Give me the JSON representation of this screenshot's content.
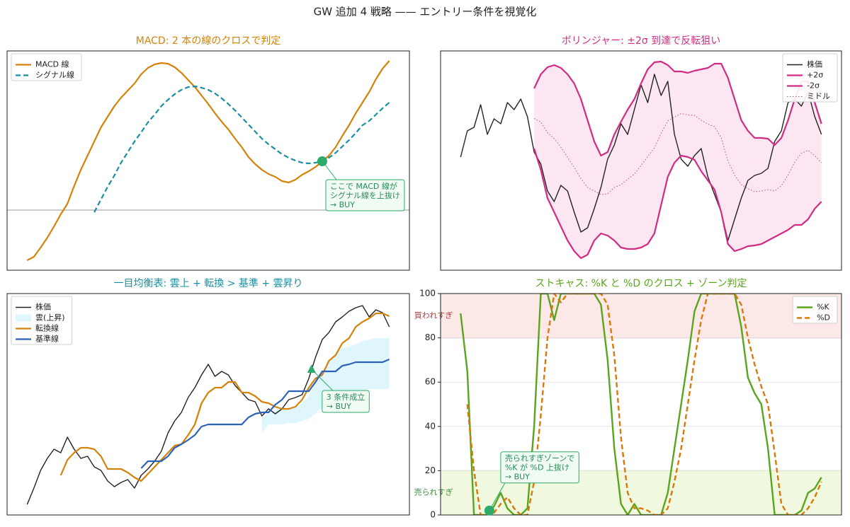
{
  "title": "GW 追加 4 戦略 —— エントリー条件を視覚化",
  "chart_data": [
    {
      "type": "line",
      "title": "MACD: 2 本の線のクロスで判定",
      "title_color": "#d4820a",
      "xlim": [
        -3,
        57
      ],
      "ylim": [
        -0.85,
        2.25
      ],
      "hline": 0,
      "legend": "upper left",
      "x": [
        0,
        1,
        2,
        3,
        4,
        5,
        6,
        7,
        8,
        9,
        10,
        11,
        12,
        13,
        14,
        15,
        16,
        17,
        18,
        19,
        20,
        21,
        22,
        23,
        24,
        25,
        26,
        27,
        28,
        29,
        30,
        31,
        32,
        33,
        34,
        35,
        36,
        37,
        38,
        39,
        40,
        41,
        42,
        43,
        44,
        45,
        46,
        47,
        48,
        49,
        50,
        51,
        52,
        53,
        54
      ],
      "series": [
        {
          "name": "MACD 線",
          "color": "#d4820a",
          "style": "solid",
          "values": [
            -0.71,
            -0.66,
            -0.53,
            -0.39,
            -0.23,
            -0.06,
            0.09,
            0.34,
            0.57,
            0.77,
            0.97,
            1.17,
            1.32,
            1.47,
            1.59,
            1.69,
            1.79,
            1.92,
            2.01,
            2.06,
            2.08,
            2.07,
            2.02,
            1.94,
            1.84,
            1.74,
            1.62,
            1.5,
            1.37,
            1.25,
            1.14,
            1.01,
            0.89,
            0.75,
            0.65,
            0.57,
            0.51,
            0.47,
            0.41,
            0.39,
            0.43,
            0.5,
            0.55,
            0.61,
            0.69,
            0.77,
            0.89,
            1.05,
            1.2,
            1.37,
            1.52,
            1.67,
            1.85,
            2.0,
            2.11
          ]
        },
        {
          "name": "シグナル線",
          "color": "#1a8fa3",
          "style": "dashed",
          "values": [
            null,
            null,
            null,
            null,
            null,
            null,
            null,
            null,
            null,
            null,
            -0.03,
            0.15,
            0.33,
            0.49,
            0.67,
            0.82,
            0.97,
            1.1,
            1.24,
            1.35,
            1.47,
            1.56,
            1.64,
            1.7,
            1.74,
            1.75,
            1.73,
            1.7,
            1.65,
            1.58,
            1.5,
            1.41,
            1.31,
            1.21,
            1.11,
            1.01,
            0.93,
            0.86,
            0.79,
            0.74,
            0.7,
            0.67,
            0.66,
            0.67,
            0.69,
            0.74,
            0.81,
            0.9,
            0.99,
            1.09,
            1.2,
            1.26,
            1.35,
            1.44,
            1.52
          ]
        }
      ],
      "annotations": [
        {
          "x": 44,
          "y": 0.69,
          "marker": "circle",
          "color": "#2eaa6a",
          "lines": [
            "ここで MACD 線が",
            "シグナル線を上抜け",
            "→ BUY"
          ]
        }
      ]
    },
    {
      "type": "line",
      "title": "ボリンジャー: ±2σ 到達で反転狙い",
      "title_color": "#d12c84",
      "xlim": [
        -3,
        57
      ],
      "ylim": [
        18,
        328
      ],
      "legend": "upper right",
      "fill_between": [
        1,
        2
      ],
      "fill_color": "#fce6f1",
      "x": [
        0,
        1,
        2,
        3,
        4,
        5,
        6,
        7,
        8,
        9,
        10,
        11,
        12,
        13,
        14,
        15,
        16,
        17,
        18,
        19,
        20,
        21,
        22,
        23,
        24,
        25,
        26,
        27,
        28,
        29,
        30,
        31,
        32,
        33,
        34,
        35,
        36,
        37,
        38,
        39,
        40,
        41,
        42,
        43,
        44,
        45,
        46,
        47,
        48,
        49,
        50,
        51,
        52,
        53,
        54
      ],
      "series": [
        {
          "name": "株価",
          "color": "#222222",
          "style": "solid",
          "width": 1.4,
          "values": [
            178,
            215,
            220,
            252,
            210,
            232,
            225,
            255,
            245,
            260,
            235,
            185,
            168,
            130,
            115,
            138,
            130,
            100,
            72,
            78,
            105,
            135,
            175,
            195,
            225,
            210,
            245,
            280,
            255,
            295,
            265,
            285,
            210,
            175,
            165,
            180,
            190,
            150,
            125,
            100,
            60,
            90,
            120,
            145,
            152,
            155,
            162,
            200,
            215,
            255,
            260,
            250,
            270,
            235,
            210
          ]
        },
        {
          "name": "+2σ",
          "color": "#d12c84",
          "style": "solid",
          "values": [
            null,
            null,
            null,
            null,
            null,
            null,
            null,
            null,
            null,
            null,
            null,
            275,
            295,
            305,
            308,
            304,
            295,
            282,
            260,
            230,
            200,
            180,
            185,
            210,
            228,
            245,
            260,
            282,
            302,
            312,
            313,
            308,
            299,
            299,
            297,
            300,
            302,
            304,
            310,
            310,
            290,
            260,
            230,
            215,
            205,
            205,
            204,
            195,
            205,
            230,
            260,
            285,
            285,
            255,
            225
          ]
        },
        {
          "name": "-2σ",
          "color": "#d12c84",
          "style": "solid",
          "values": [
            null,
            null,
            null,
            null,
            null,
            null,
            null,
            null,
            null,
            null,
            null,
            190,
            160,
            120,
            100,
            80,
            60,
            45,
            35,
            40,
            60,
            70,
            67,
            60,
            50,
            48,
            48,
            50,
            55,
            70,
            110,
            150,
            170,
            180,
            178,
            174,
            158,
            145,
            132,
            100,
            55,
            45,
            48,
            52,
            53,
            55,
            60,
            65,
            70,
            75,
            82,
            82,
            90,
            105,
            115
          ]
        },
        {
          "name": "ミドル",
          "color": "#c0507a",
          "style": "dotted",
          "width": 1,
          "values": [
            null,
            null,
            null,
            null,
            null,
            null,
            null,
            null,
            null,
            null,
            null,
            232.5,
            227.5,
            212.5,
            204,
            192,
            177.5,
            163.5,
            147.5,
            135,
            130,
            125,
            126,
            135,
            139,
            146.5,
            154,
            166,
            178.5,
            191,
            211.5,
            229,
            234.5,
            239.5,
            237.5,
            237,
            230,
            224.5,
            221,
            205,
            172.5,
            152.5,
            139,
            133.5,
            129,
            130,
            132,
            130,
            137.5,
            152.5,
            171,
            183.5,
            187.5,
            180,
            170
          ]
        }
      ]
    },
    {
      "type": "line",
      "title": "一目均衡表: 雲上 + 転換 > 基準 + 雲昇り",
      "title_color": "#1a8fa3",
      "xlim": [
        -3,
        57
      ],
      "ylim": [
        72,
        385
      ],
      "legend": "upper left",
      "x": [
        0,
        1,
        2,
        3,
        4,
        5,
        6,
        7,
        8,
        9,
        10,
        11,
        12,
        13,
        14,
        15,
        16,
        17,
        18,
        19,
        20,
        21,
        22,
        23,
        24,
        25,
        26,
        27,
        28,
        29,
        30,
        31,
        32,
        33,
        34,
        35,
        36,
        37,
        38,
        39,
        40,
        41,
        42,
        43,
        44,
        45,
        46,
        47,
        48,
        49,
        50,
        51,
        52,
        53,
        54
      ],
      "series": [
        {
          "name": "株価",
          "color": "#222222",
          "style": "solid",
          "width": 1.4,
          "values": [
            87,
            110,
            135,
            152,
            165,
            160,
            182,
            165,
            152,
            155,
            140,
            135,
            120,
            112,
            118,
            122,
            110,
            128,
            137,
            148,
            162,
            188,
            205,
            217,
            238,
            252,
            270,
            285,
            268,
            275,
            270,
            255,
            245,
            235,
            232,
            212,
            222,
            215,
            222,
            235,
            238,
            242,
            265,
            295,
            320,
            330,
            345,
            352,
            360,
            365,
            368,
            352,
            362,
            358,
            338
          ]
        },
        {
          "name": "雲(上昇)",
          "type": "band",
          "color": "#dff7fc",
          "upper": [
            null,
            null,
            null,
            null,
            null,
            null,
            null,
            null,
            null,
            null,
            null,
            null,
            null,
            null,
            null,
            null,
            null,
            null,
            null,
            null,
            null,
            null,
            null,
            null,
            null,
            null,
            null,
            null,
            null,
            null,
            null,
            null,
            null,
            null,
            null,
            210,
            215,
            220,
            225,
            222,
            225,
            230,
            240,
            260,
            272,
            288,
            300,
            308,
            310,
            313,
            318,
            320,
            322,
            322,
            322
          ],
          "lower": [
            null,
            null,
            null,
            null,
            null,
            null,
            null,
            null,
            null,
            null,
            null,
            null,
            null,
            null,
            null,
            null,
            null,
            null,
            null,
            null,
            null,
            null,
            null,
            null,
            null,
            null,
            null,
            null,
            null,
            null,
            null,
            null,
            null,
            null,
            null,
            188,
            200,
            200,
            200,
            202,
            202,
            205,
            208,
            215,
            225,
            235,
            240,
            240,
            240,
            245,
            247,
            250,
            250,
            250,
            250
          ]
        },
        {
          "name": "転換線",
          "color": "#d4820a",
          "style": "solid",
          "values": [
            null,
            null,
            null,
            null,
            null,
            128,
            150,
            160,
            167,
            167,
            165,
            155,
            137,
            137,
            137,
            132,
            125,
            120,
            130,
            140,
            150,
            160,
            170,
            172,
            185,
            200,
            230,
            245,
            252,
            252,
            260,
            260,
            245,
            245,
            240,
            232,
            230,
            225,
            222,
            222,
            225,
            235,
            252,
            265,
            270,
            290,
            298,
            315,
            322,
            338,
            345,
            350,
            357,
            357,
            353
          ]
        },
        {
          "name": "基準線",
          "color": "#2c62b8",
          "style": "solid",
          "values": [
            null,
            null,
            null,
            null,
            null,
            null,
            null,
            null,
            null,
            null,
            null,
            null,
            null,
            null,
            null,
            null,
            null,
            138,
            148,
            148,
            148,
            155,
            167,
            172,
            178,
            185,
            197,
            200,
            200,
            200,
            200,
            200,
            200,
            210,
            215,
            217,
            217,
            228,
            235,
            247,
            247,
            247,
            247,
            260,
            275,
            275,
            275,
            283,
            285,
            288,
            288,
            288,
            288,
            288,
            292
          ]
        }
      ],
      "annotations": [
        {
          "x": 42.4,
          "y": 278,
          "marker": "triangle",
          "color": "#2eaa6a",
          "lines": [
            "3 条件成立",
            "→ BUY"
          ]
        }
      ]
    },
    {
      "type": "line",
      "title": "ストキャス: %K と %D のクロス + ゾーン判定",
      "title_color": "#5aa51c",
      "xlim": [
        -3,
        57
      ],
      "ylim": [
        0,
        100
      ],
      "yticks": [
        0,
        20,
        40,
        60,
        80,
        100
      ],
      "grid": true,
      "legend": "upper right",
      "zones": [
        {
          "from": 80,
          "to": 100,
          "label": "買われすぎ",
          "color": "#fde8e8",
          "line_color": "#e08a8a",
          "label_color": "#b03a3a"
        },
        {
          "from": 0,
          "to": 20,
          "label": "売られすぎ",
          "color": "#f0f9e0",
          "line_color": "#a8d27a",
          "label_color": "#3f8f3f"
        }
      ],
      "x": [
        0,
        1,
        2,
        3,
        4,
        5,
        6,
        7,
        8,
        9,
        10,
        11,
        12,
        13,
        14,
        15,
        16,
        17,
        18,
        19,
        20,
        21,
        22,
        23,
        24,
        25,
        26,
        27,
        28,
        29,
        30,
        31,
        32,
        33,
        34,
        35,
        36,
        37,
        38,
        39,
        40,
        41,
        42,
        43,
        44,
        45,
        46,
        47,
        48,
        49,
        50,
        51,
        52,
        53,
        54
      ],
      "series": [
        {
          "name": "%K",
          "color": "#5aa51c",
          "style": "solid",
          "width": 2.4,
          "values": [
            91,
            65,
            0,
            0,
            0,
            4,
            10,
            3,
            0,
            0,
            3,
            40,
            100,
            100,
            88,
            100,
            100,
            100,
            100,
            100,
            100,
            95,
            70,
            30,
            5,
            0,
            5,
            0,
            0,
            0,
            0,
            10,
            30,
            50,
            70,
            92,
            100,
            100,
            100,
            100,
            100,
            100,
            85,
            62,
            55,
            50,
            30,
            0,
            0,
            0,
            0,
            2,
            10,
            12,
            17
          ]
        },
        {
          "name": "%D",
          "color": "#d9780c",
          "style": "dashed",
          "width": 2.4,
          "values": [
            null,
            50,
            20,
            0,
            0,
            1,
            5,
            8,
            3,
            0,
            0,
            15,
            45,
            80,
            100,
            96,
            100,
            100,
            100,
            100,
            100,
            100,
            95,
            72,
            35,
            10,
            3,
            3,
            2,
            0,
            0,
            3,
            15,
            30,
            50,
            70,
            88,
            100,
            100,
            100,
            100,
            100,
            95,
            80,
            68,
            58,
            50,
            28,
            5,
            0,
            0,
            0,
            3,
            8,
            15
          ]
        }
      ],
      "annotations": [
        {
          "x": 4.3,
          "y": 2,
          "marker": "circle",
          "color": "#2eaa6a",
          "lines": [
            "売られすぎゾーンで",
            "%K が %D 上抜け",
            "→ BUY"
          ]
        }
      ]
    }
  ]
}
